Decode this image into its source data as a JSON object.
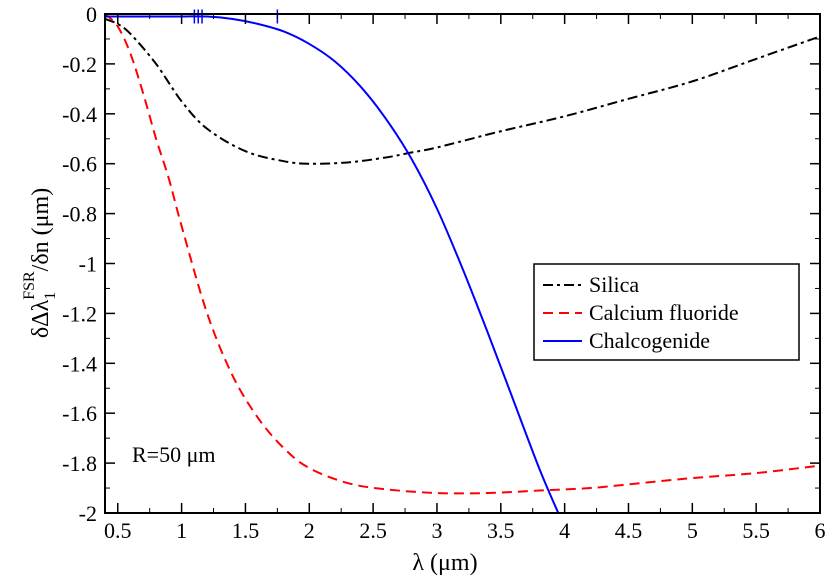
{
  "chart_data": {
    "type": "line",
    "title": "",
    "xlabel": "λ (μm)",
    "ylabel_parts": {
      "base": "δΔλ",
      "sub": "1",
      "sup": "FSR",
      "tail": "/δn (μm)"
    },
    "xlim": [
      0.4,
      6.0
    ],
    "ylim": [
      -2.0,
      0.0
    ],
    "x_ticks": [
      0.5,
      1,
      1.5,
      2,
      2.5,
      3,
      3.5,
      4,
      4.5,
      5,
      5.5,
      6
    ],
    "x_tick_labels": [
      "0.5",
      "1",
      "1.5",
      "2",
      "2.5",
      "3",
      "3.5",
      "4",
      "4.5",
      "5",
      "5.5",
      "6"
    ],
    "y_ticks": [
      0,
      -0.2,
      -0.4,
      -0.6,
      -0.8,
      -1,
      -1.2,
      -1.4,
      -1.6,
      -1.8,
      -2
    ],
    "y_tick_labels": [
      "0",
      "-0.2",
      "-0.4",
      "-0.6",
      "-0.8",
      "-1",
      "-1.2",
      "-1.4",
      "-1.6",
      "-1.8",
      "-2"
    ],
    "legend_position": "center-right",
    "annotation": "R=50 μm",
    "series": [
      {
        "name": "Silica",
        "color": "#000000",
        "dash": "dashdot",
        "x": [
          0.4,
          0.5,
          0.6,
          0.8,
          1.0,
          1.2,
          1.5,
          1.8,
          2.0,
          2.3,
          2.6,
          2.8,
          3.0,
          3.5,
          4.0,
          4.5,
          5.0,
          5.5,
          6.0
        ],
        "y": [
          -0.02,
          -0.04,
          -0.08,
          -0.2,
          -0.35,
          -0.46,
          -0.55,
          -0.59,
          -0.6,
          -0.595,
          -0.575,
          -0.555,
          -0.535,
          -0.47,
          -0.41,
          -0.34,
          -0.27,
          -0.18,
          -0.09
        ]
      },
      {
        "name": "Calcium fluoride",
        "color": "#ff0000",
        "dash": "dashed",
        "x": [
          0.4,
          0.5,
          0.6,
          0.7,
          0.8,
          0.9,
          1.0,
          1.2,
          1.4,
          1.6,
          1.8,
          2.0,
          2.3,
          2.6,
          3.0,
          3.4,
          3.8,
          4.2,
          4.6,
          5.0,
          5.5,
          6.0
        ],
        "y": [
          0.0,
          -0.05,
          -0.16,
          -0.32,
          -0.5,
          -0.66,
          -0.85,
          -1.2,
          -1.45,
          -1.62,
          -1.74,
          -1.82,
          -1.88,
          -1.905,
          -1.92,
          -1.92,
          -1.91,
          -1.9,
          -1.88,
          -1.86,
          -1.84,
          -1.81
        ]
      },
      {
        "name": "Chalcogenide",
        "color": "#0000ff",
        "dash": "solid",
        "x": [
          0.4,
          0.6,
          0.8,
          1.0,
          1.2,
          1.4,
          1.6,
          1.8,
          2.0,
          2.2,
          2.4,
          2.6,
          2.8,
          3.0,
          3.2,
          3.4,
          3.6,
          3.8,
          3.95
        ],
        "y": [
          -0.01,
          -0.01,
          -0.01,
          -0.01,
          -0.01,
          -0.02,
          -0.04,
          -0.07,
          -0.12,
          -0.19,
          -0.29,
          -0.42,
          -0.58,
          -0.78,
          -1.02,
          -1.28,
          -1.55,
          -1.82,
          -2.0
        ]
      }
    ]
  }
}
